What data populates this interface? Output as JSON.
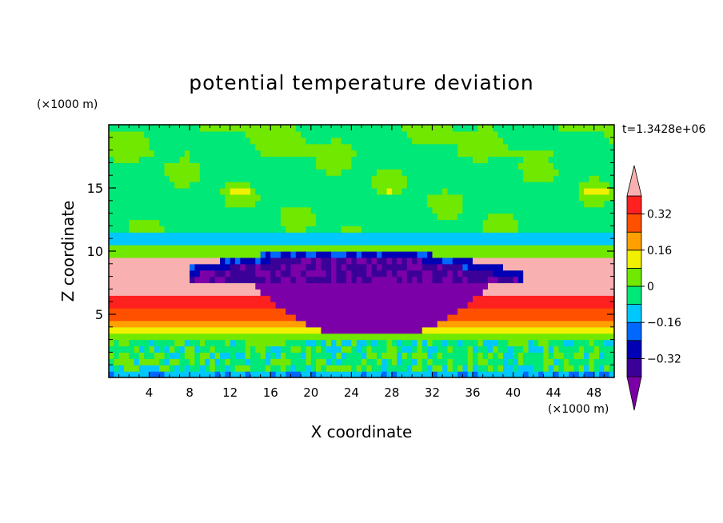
{
  "chart_data": {
    "type": "heatmap",
    "title": "potential temperature deviation",
    "time_label": "t=1.3428e+06",
    "xlabel": "X coordinate",
    "ylabel": "Z coordinate",
    "x_unit": "(×1000 m)",
    "y_unit": "(×1000 m)",
    "xlim": [
      0,
      50
    ],
    "ylim": [
      0,
      20
    ],
    "x_ticks": [
      4,
      8,
      12,
      16,
      20,
      24,
      28,
      32,
      36,
      40,
      44,
      48
    ],
    "y_ticks": [
      5,
      10,
      15
    ],
    "colorbar": {
      "levels": [
        -0.4,
        -0.32,
        -0.24,
        -0.16,
        -0.08,
        0,
        0.08,
        0.16,
        0.24,
        0.32,
        0.4
      ],
      "labels": [
        "0.32",
        "0.16",
        "0",
        "−0.16",
        "−0.32"
      ],
      "label_values": [
        0.32,
        0.16,
        0,
        -0.16,
        -0.32
      ],
      "colors": [
        "#7b00a8",
        "#3a0098",
        "#0000b4",
        "#0068ff",
        "#00c8ff",
        "#00e878",
        "#70e800",
        "#f0f000",
        "#ffa000",
        "#ff5000",
        "#ff2020",
        "#f8b0b0"
      ],
      "extend": "both"
    }
  }
}
